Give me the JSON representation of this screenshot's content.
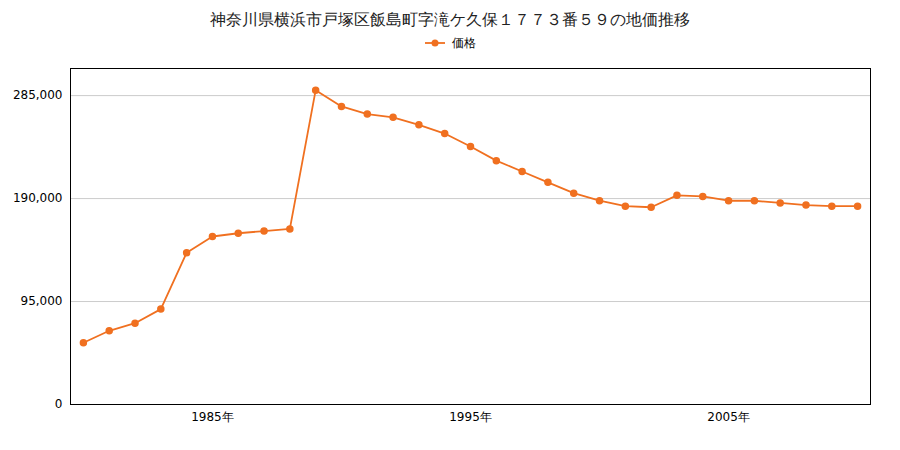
{
  "chart_data": {
    "type": "line",
    "title": "神奈川県横浜市戸塚区飯島町字滝ケ久保１７７３番５９の地価推移",
    "x": [
      1980,
      1981,
      1982,
      1983,
      1984,
      1985,
      1986,
      1987,
      1988,
      1989,
      1990,
      1991,
      1992,
      1993,
      1994,
      1995,
      1996,
      1997,
      1998,
      1999,
      2000,
      2001,
      2002,
      2003,
      2004,
      2005,
      2006,
      2007,
      2008,
      2009,
      2010
    ],
    "series": [
      {
        "name": "価格",
        "color": "#f07020",
        "marker": "circle",
        "values": [
          57000,
          68000,
          75000,
          88000,
          140000,
          155000,
          158000,
          160000,
          162000,
          290000,
          275000,
          268000,
          265000,
          258000,
          250000,
          238000,
          225000,
          215000,
          205000,
          195000,
          188000,
          183000,
          182000,
          193000,
          192000,
          188000,
          188000,
          186000,
          184000,
          183000,
          183000
        ]
      }
    ],
    "xlim": [
      1979.5,
      2010.5
    ],
    "xticks": [
      {
        "value": 1985,
        "label": "1985年"
      },
      {
        "value": 1995,
        "label": "1995年"
      },
      {
        "value": 2005,
        "label": "2005年"
      }
    ],
    "ylim": [
      0,
      310000
    ],
    "yticks": [
      0,
      {
        "value": 95000,
        "label": "95,000"
      },
      {
        "value": 190000,
        "label": "190,000"
      },
      {
        "value": 285000,
        "label": "285,000"
      }
    ],
    "grid": "y",
    "legend": "top"
  }
}
